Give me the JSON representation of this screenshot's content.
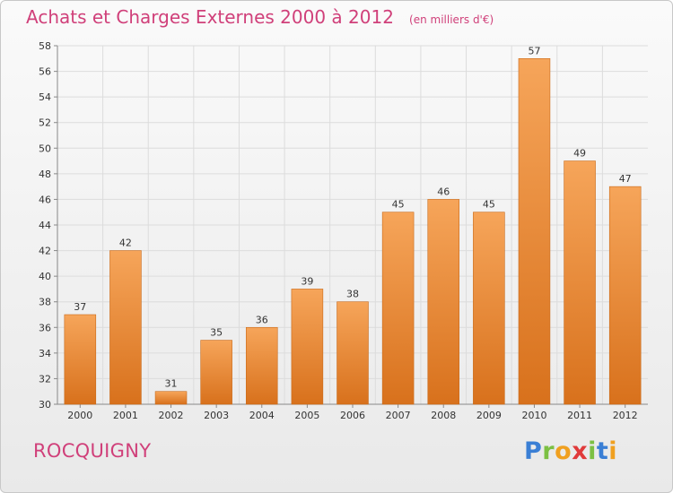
{
  "header": {
    "title": "Achats et Charges Externes 2000 à 2012",
    "subtitle": "(en milliers d'€)"
  },
  "footer": {
    "commune": "ROCQUIGNY",
    "logo": "Proxiti",
    "logo_letters": [
      "P",
      "r",
      "o",
      "x",
      "i",
      "t",
      "i"
    ],
    "logo_colors": [
      "#3a7fd5",
      "#7cc043",
      "#f0a020",
      "#e03a3a",
      "#7cc043",
      "#3a7fd5",
      "#f0a020"
    ]
  },
  "colors": {
    "bar_top": "#f6a55a",
    "bar_bottom": "#d8711c",
    "bar_edge": "#c96a1a",
    "grid": "#dcdcdc",
    "axis": "#888888",
    "accent": "#d0407a"
  },
  "chart_data": {
    "type": "bar",
    "title": "Achats et Charges Externes 2000 à 2012",
    "subtitle": "(en milliers d'€)",
    "xlabel": "",
    "ylabel": "",
    "categories": [
      "2000",
      "2001",
      "2002",
      "2003",
      "2004",
      "2005",
      "2006",
      "2007",
      "2008",
      "2009",
      "2010",
      "2011",
      "2012"
    ],
    "values": [
      37,
      42,
      31,
      35,
      36,
      39,
      38,
      45,
      46,
      45,
      57,
      49,
      47
    ],
    "ylim": [
      30,
      58
    ],
    "yticks": [
      30,
      32,
      34,
      36,
      38,
      40,
      42,
      44,
      46,
      48,
      50,
      52,
      54,
      56,
      58
    ],
    "grid": true,
    "data_labels": true
  }
}
